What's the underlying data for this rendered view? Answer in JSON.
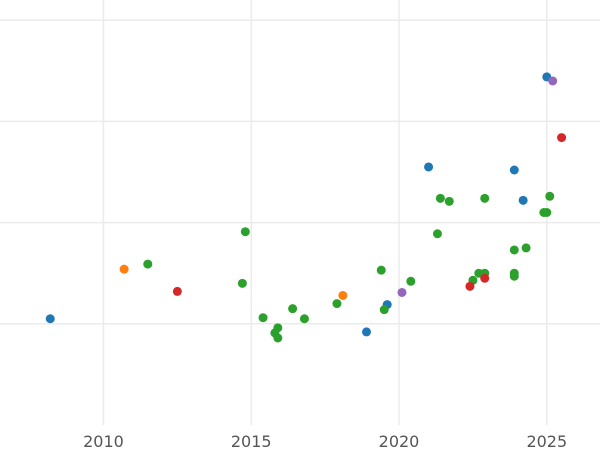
{
  "colors": {
    "background": "#ffffff",
    "grid": "#ebebeb",
    "tick_text": "#555555",
    "blue": "#1f77b4",
    "orange": "#ff7f0e",
    "green": "#2ca02c",
    "red": "#d62728",
    "purple": "#9467bd"
  },
  "chart_data": {
    "type": "scatter",
    "title": "",
    "xlabel": "",
    "ylabel": "",
    "xlim": [
      2006.5,
      2026.8
    ],
    "ylim": [
      0,
      42
    ],
    "x_ticks": [
      2010,
      2015,
      2020,
      2025
    ],
    "x_tick_labels": [
      "2010",
      "2015",
      "2020",
      "2025"
    ],
    "y_grid_values": [
      10,
      20,
      30,
      40
    ],
    "y_tick_labels_shown": false,
    "grid": true,
    "legend": "none",
    "series": [
      {
        "color": "#1f77b4",
        "points": [
          [
            2008.2,
            10.5
          ],
          [
            2018.9,
            9.2
          ],
          [
            2019.6,
            11.9
          ],
          [
            2021.0,
            25.5
          ],
          [
            2023.9,
            25.2
          ],
          [
            2024.2,
            22.2
          ],
          [
            2025.0,
            34.4
          ]
        ]
      },
      {
        "color": "#ff7f0e",
        "points": [
          [
            2010.7,
            15.4
          ],
          [
            2018.1,
            12.8
          ]
        ]
      },
      {
        "color": "#2ca02c",
        "points": [
          [
            2011.5,
            15.9
          ],
          [
            2014.7,
            14.0
          ],
          [
            2014.8,
            19.1
          ],
          [
            2015.4,
            10.6
          ],
          [
            2015.8,
            9.1
          ],
          [
            2015.9,
            9.6
          ],
          [
            2015.9,
            8.6
          ],
          [
            2016.4,
            11.5
          ],
          [
            2016.8,
            10.5
          ],
          [
            2017.9,
            12.0
          ],
          [
            2019.4,
            15.3
          ],
          [
            2019.5,
            11.4
          ],
          [
            2020.4,
            14.2
          ],
          [
            2021.3,
            18.9
          ],
          [
            2021.4,
            22.4
          ],
          [
            2021.7,
            22.1
          ],
          [
            2022.5,
            14.3
          ],
          [
            2022.7,
            15.0
          ],
          [
            2022.9,
            15.0
          ],
          [
            2022.9,
            22.4
          ],
          [
            2023.9,
            15.0
          ],
          [
            2023.9,
            14.7
          ],
          [
            2023.9,
            17.3
          ],
          [
            2024.3,
            17.5
          ],
          [
            2024.9,
            21.0
          ],
          [
            2025.0,
            21.0
          ],
          [
            2025.1,
            22.6
          ]
        ]
      },
      {
        "color": "#d62728",
        "points": [
          [
            2012.5,
            13.2
          ],
          [
            2022.4,
            13.7
          ],
          [
            2022.9,
            14.5
          ],
          [
            2025.5,
            28.4
          ]
        ]
      },
      {
        "color": "#9467bd",
        "points": [
          [
            2020.1,
            13.1
          ],
          [
            2025.2,
            34.0
          ]
        ]
      }
    ]
  }
}
